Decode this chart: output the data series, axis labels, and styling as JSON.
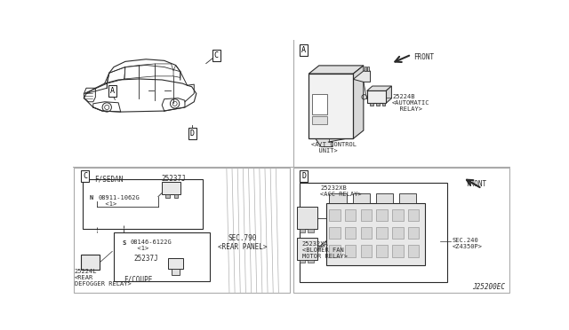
{
  "bg_color": "#ffffff",
  "line_color": "#2a2a2a",
  "light_gray": "#cccccc",
  "med_gray": "#888888",
  "diagram_code": "J25200EC",
  "font_family": "monospace",
  "labels": {
    "A": "A",
    "C": "C",
    "D": "D",
    "front": "FRONT",
    "part_25224B": "25224B\n<AUTOMATIC\n  RELAY>",
    "at_control": "<A/T CONTROL\n  UNIT>",
    "fsedan": "F/SEDAN",
    "part_25237J_top": "25237J",
    "part_08911": "08911-1062G\n  <1>",
    "N_label": "N",
    "S_label": "S",
    "part_08146": "08146-6122G\n  <1>",
    "part_25237J_bot": "25237J",
    "part_25224L": "25224L\n<REAR\nDEFOGGER RELAY>",
    "fcoupe": "F/COUPE",
    "sec790": "SEC.790\n<REAR PANEL>",
    "part_25232XB": "25232XB\n<ACC RELAY>",
    "part_25232XA": "25232XA\n<BLOWER FAN\nMOTOR RELAY>",
    "sec240": "SEC.240\n<Z4350P>"
  }
}
